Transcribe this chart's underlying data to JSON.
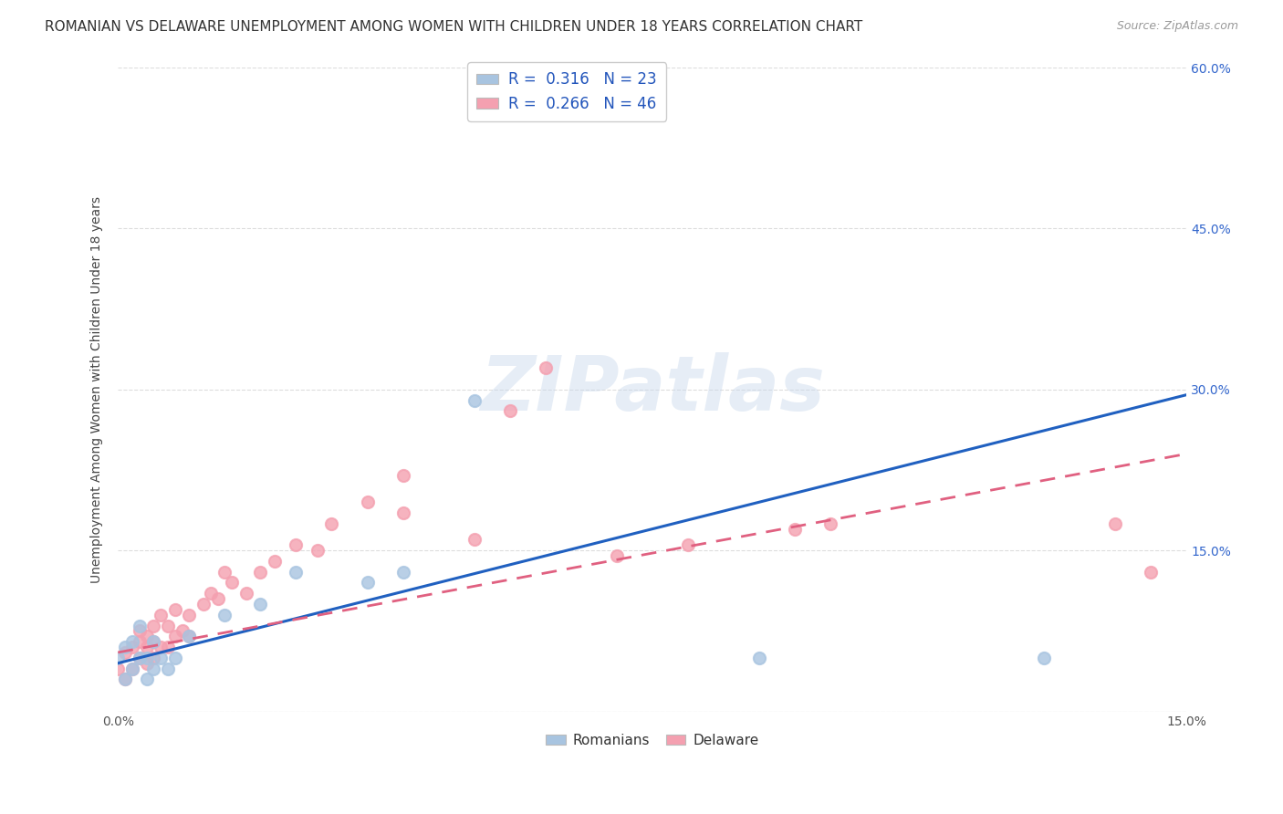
{
  "title": "ROMANIAN VS DELAWARE UNEMPLOYMENT AMONG WOMEN WITH CHILDREN UNDER 18 YEARS CORRELATION CHART",
  "source": "Source: ZipAtlas.com",
  "ylabel": "Unemployment Among Women with Children Under 18 years",
  "xlabel_romanians": "Romanians",
  "xlabel_delaware": "Delaware",
  "xlim": [
    0.0,
    0.15
  ],
  "ylim": [
    0.0,
    0.6
  ],
  "r_romanians": 0.316,
  "n_romanians": 23,
  "r_delaware": 0.266,
  "n_delaware": 46,
  "color_romanians": "#a8c4e0",
  "color_delaware": "#f4a0b0",
  "line_color_romanians": "#2060c0",
  "line_color_delaware": "#e06080",
  "background_color": "#ffffff",
  "watermark": "ZIPatlas",
  "title_fontsize": 11,
  "axis_label_fontsize": 10,
  "tick_fontsize": 10,
  "rom_x": [
    0.0,
    0.001,
    0.001,
    0.002,
    0.002,
    0.003,
    0.003,
    0.004,
    0.004,
    0.005,
    0.005,
    0.006,
    0.007,
    0.008,
    0.01,
    0.015,
    0.02,
    0.025,
    0.035,
    0.04,
    0.05,
    0.09,
    0.13
  ],
  "rom_y": [
    0.05,
    0.03,
    0.06,
    0.04,
    0.065,
    0.05,
    0.08,
    0.05,
    0.03,
    0.04,
    0.065,
    0.05,
    0.04,
    0.05,
    0.07,
    0.09,
    0.1,
    0.13,
    0.12,
    0.13,
    0.29,
    0.05,
    0.05
  ],
  "del_x": [
    0.0,
    0.001,
    0.001,
    0.002,
    0.002,
    0.003,
    0.003,
    0.003,
    0.004,
    0.004,
    0.004,
    0.005,
    0.005,
    0.005,
    0.006,
    0.006,
    0.007,
    0.007,
    0.008,
    0.008,
    0.009,
    0.01,
    0.01,
    0.012,
    0.013,
    0.014,
    0.015,
    0.016,
    0.018,
    0.02,
    0.022,
    0.025,
    0.028,
    0.03,
    0.035,
    0.04,
    0.04,
    0.05,
    0.055,
    0.06,
    0.07,
    0.08,
    0.095,
    0.1,
    0.14,
    0.145
  ],
  "del_y": [
    0.04,
    0.03,
    0.055,
    0.04,
    0.06,
    0.05,
    0.065,
    0.075,
    0.045,
    0.06,
    0.07,
    0.05,
    0.065,
    0.08,
    0.06,
    0.09,
    0.06,
    0.08,
    0.07,
    0.095,
    0.075,
    0.07,
    0.09,
    0.1,
    0.11,
    0.105,
    0.13,
    0.12,
    0.11,
    0.13,
    0.14,
    0.155,
    0.15,
    0.175,
    0.195,
    0.185,
    0.22,
    0.16,
    0.28,
    0.32,
    0.145,
    0.155,
    0.17,
    0.175,
    0.175,
    0.13
  ],
  "trend_rom_x0": 0.0,
  "trend_rom_y0": 0.045,
  "trend_rom_x1": 0.15,
  "trend_rom_y1": 0.295,
  "trend_del_x0": 0.0,
  "trend_del_y0": 0.055,
  "trend_del_x1": 0.15,
  "trend_del_y1": 0.24
}
